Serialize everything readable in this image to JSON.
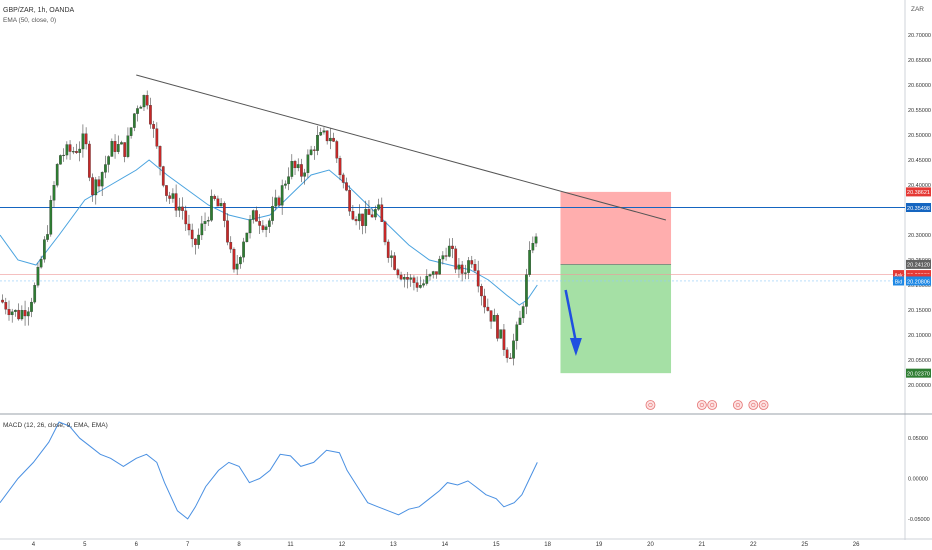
{
  "chart_data": {
    "type": "candlestick",
    "title": "GBP/ZAR, 1h, OANDA",
    "subtitle": "EMA (50, close, 0)",
    "y_axis_corner_label": "ZAR",
    "ylim": [
      19.95,
      20.77
    ],
    "y_ticks": [
      "20.70000",
      "20.65000",
      "20.60000",
      "20.55000",
      "20.50000",
      "20.45000",
      "20.40000",
      "20.35000",
      "20.30000",
      "20.25000",
      "20.20000",
      "20.15000",
      "20.10000",
      "20.05000",
      "20.00000"
    ],
    "x_ticks": [
      {
        "label": "4",
        "x": 4
      },
      {
        "label": "5",
        "x": 5
      },
      {
        "label": "6",
        "x": 6
      },
      {
        "label": "7",
        "x": 7
      },
      {
        "label": "8",
        "x": 8
      },
      {
        "label": "11",
        "x": 9
      },
      {
        "label": "12",
        "x": 10
      },
      {
        "label": "13",
        "x": 11
      },
      {
        "label": "14",
        "x": 12
      },
      {
        "label": "15",
        "x": 13
      },
      {
        "label": "18",
        "x": 14
      },
      {
        "label": "19",
        "x": 15
      },
      {
        "label": "20",
        "x": 16
      },
      {
        "label": "21",
        "x": 17
      },
      {
        "label": "22",
        "x": 18
      },
      {
        "label": "25",
        "x": 19
      },
      {
        "label": "26",
        "x": 20
      }
    ],
    "x_range": [
      3.35,
      20.95
    ],
    "price_path": [
      [
        3.35,
        20.17
      ],
      [
        3.7,
        20.14
      ],
      [
        3.9,
        20.16
      ],
      [
        4.05,
        20.2
      ],
      [
        4.25,
        20.3
      ],
      [
        4.5,
        20.46
      ],
      [
        4.8,
        20.47
      ],
      [
        5.0,
        20.49
      ],
      [
        5.15,
        20.39
      ],
      [
        5.35,
        20.43
      ],
      [
        5.55,
        20.48
      ],
      [
        5.8,
        20.47
      ],
      [
        6.0,
        20.56
      ],
      [
        6.2,
        20.58
      ],
      [
        6.4,
        20.47
      ],
      [
        6.6,
        20.38
      ],
      [
        6.9,
        20.35
      ],
      [
        7.1,
        20.27
      ],
      [
        7.3,
        20.32
      ],
      [
        7.5,
        20.37
      ],
      [
        7.7,
        20.34
      ],
      [
        7.9,
        20.22
      ],
      [
        8.1,
        20.3
      ],
      [
        8.3,
        20.34
      ],
      [
        8.55,
        20.32
      ],
      [
        8.8,
        20.38
      ],
      [
        9.0,
        20.44
      ],
      [
        9.2,
        20.42
      ],
      [
        9.5,
        20.49
      ],
      [
        9.8,
        20.5
      ],
      [
        10.0,
        20.41
      ],
      [
        10.2,
        20.35
      ],
      [
        10.4,
        20.33
      ],
      [
        10.7,
        20.35
      ],
      [
        10.9,
        20.27
      ],
      [
        11.1,
        20.23
      ],
      [
        11.3,
        20.21
      ],
      [
        11.55,
        20.2
      ],
      [
        11.8,
        20.22
      ],
      [
        12.05,
        20.28
      ],
      [
        12.3,
        20.22
      ],
      [
        12.55,
        20.26
      ],
      [
        12.75,
        20.17
      ],
      [
        12.95,
        20.13
      ],
      [
        13.1,
        20.09
      ],
      [
        13.25,
        20.06
      ],
      [
        13.45,
        20.12
      ],
      [
        13.6,
        20.22
      ],
      [
        13.72,
        20.3
      ],
      [
        13.8,
        20.28
      ]
    ],
    "ema_path": [
      [
        3.35,
        20.3
      ],
      [
        3.7,
        20.25
      ],
      [
        4.05,
        20.24
      ],
      [
        4.5,
        20.3
      ],
      [
        5.0,
        20.37
      ],
      [
        5.5,
        20.4
      ],
      [
        6.0,
        20.43
      ],
      [
        6.25,
        20.45
      ],
      [
        6.6,
        20.42
      ],
      [
        7.0,
        20.39
      ],
      [
        7.4,
        20.36
      ],
      [
        7.8,
        20.34
      ],
      [
        8.2,
        20.33
      ],
      [
        8.6,
        20.34
      ],
      [
        9.0,
        20.38
      ],
      [
        9.4,
        20.42
      ],
      [
        9.75,
        20.43
      ],
      [
        10.1,
        20.4
      ],
      [
        10.5,
        20.36
      ],
      [
        10.9,
        20.32
      ],
      [
        11.3,
        20.28
      ],
      [
        11.7,
        20.25
      ],
      [
        12.1,
        20.24
      ],
      [
        12.5,
        20.23
      ],
      [
        12.85,
        20.21
      ],
      [
        13.2,
        20.18
      ],
      [
        13.45,
        20.16
      ],
      [
        13.6,
        20.17
      ],
      [
        13.8,
        20.2
      ]
    ],
    "trendline": [
      [
        6.0,
        20.62
      ],
      [
        16.3,
        20.33
      ]
    ],
    "horizontal_level": 20.35498,
    "ask_price": 20.22086,
    "bid_price": 20.20806,
    "position_tool": {
      "x_start": 14.25,
      "x_end": 16.4,
      "stop": 20.38621,
      "entry": 20.2412,
      "target": 20.0237,
      "stop_color": "#ff9a9a",
      "target_color": "#8fd88f"
    },
    "arrow": {
      "from": [
        14.35,
        20.19
      ],
      "to": [
        14.55,
        20.07
      ],
      "color": "#1f4fe0"
    },
    "price_labels": [
      {
        "text": "20.38621",
        "price": 20.38621,
        "color": "#e53935"
      },
      {
        "text": "20.35498",
        "price": 20.35498,
        "color": "#1565c0"
      },
      {
        "text": "20.24120",
        "price": 20.2412,
        "color": "#616161"
      },
      {
        "text": "20.22086",
        "price": 20.22086,
        "color": "#e53935",
        "side": "Ask"
      },
      {
        "text": "31:07",
        "price": 20.2135,
        "color": "#e53935"
      },
      {
        "text": "20.20806",
        "price": 20.20806,
        "color": "#1e88e5",
        "side": "Bid"
      },
      {
        "text": "20.02370",
        "price": 20.0237,
        "color": "#2e7d32"
      }
    ],
    "ask_label": "Ask",
    "bid_label": "Bid",
    "countdown": "31:07",
    "event_markers": [
      16.0,
      17.0,
      17.2,
      17.7,
      18.0,
      18.2
    ],
    "macd": {
      "title": "MACD (12, 26, close, 9, EMA, EMA)",
      "ylim": [
        -0.07,
        0.075
      ],
      "y_ticks": [
        "0.05000",
        "0.00000",
        "-0.05000"
      ],
      "path": [
        [
          3.35,
          -0.03
        ],
        [
          3.7,
          0.0
        ],
        [
          4.0,
          0.02
        ],
        [
          4.3,
          0.045
        ],
        [
          4.5,
          0.07
        ],
        [
          4.7,
          0.065
        ],
        [
          4.9,
          0.05
        ],
        [
          5.1,
          0.04
        ],
        [
          5.3,
          0.03
        ],
        [
          5.5,
          0.025
        ],
        [
          5.75,
          0.015
        ],
        [
          6.0,
          0.025
        ],
        [
          6.2,
          0.03
        ],
        [
          6.4,
          0.02
        ],
        [
          6.55,
          -0.005
        ],
        [
          6.8,
          -0.04
        ],
        [
          7.0,
          -0.05
        ],
        [
          7.15,
          -0.035
        ],
        [
          7.35,
          -0.01
        ],
        [
          7.6,
          0.01
        ],
        [
          7.8,
          0.02
        ],
        [
          8.0,
          0.015
        ],
        [
          8.2,
          -0.005
        ],
        [
          8.4,
          0.0
        ],
        [
          8.6,
          0.01
        ],
        [
          8.8,
          0.03
        ],
        [
          9.0,
          0.028
        ],
        [
          9.2,
          0.015
        ],
        [
          9.45,
          0.02
        ],
        [
          9.7,
          0.035
        ],
        [
          9.95,
          0.032
        ],
        [
          10.1,
          0.01
        ],
        [
          10.3,
          -0.01
        ],
        [
          10.5,
          -0.03
        ],
        [
          10.7,
          -0.035
        ],
        [
          10.9,
          -0.04
        ],
        [
          11.1,
          -0.045
        ],
        [
          11.3,
          -0.038
        ],
        [
          11.5,
          -0.035
        ],
        [
          11.7,
          -0.025
        ],
        [
          11.9,
          -0.015
        ],
        [
          12.05,
          -0.005
        ],
        [
          12.25,
          -0.008
        ],
        [
          12.45,
          -0.003
        ],
        [
          12.6,
          -0.01
        ],
        [
          12.8,
          -0.02
        ],
        [
          13.0,
          -0.025
        ],
        [
          13.15,
          -0.035
        ],
        [
          13.35,
          -0.03
        ],
        [
          13.5,
          -0.02
        ],
        [
          13.65,
          0.0
        ],
        [
          13.8,
          0.02
        ]
      ]
    }
  }
}
